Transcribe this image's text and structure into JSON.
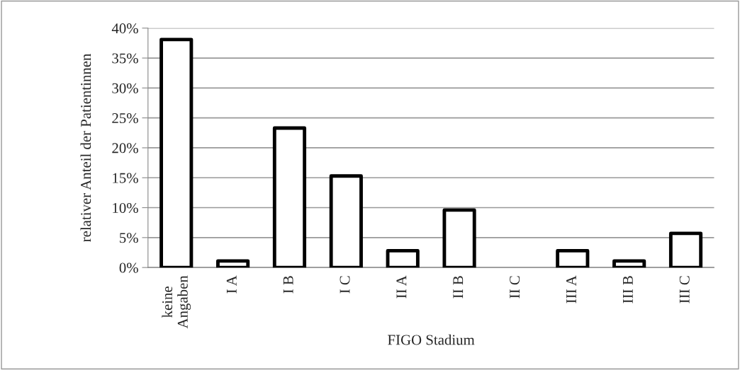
{
  "chart_data": {
    "type": "bar",
    "xlabel": "FIGO Stadium",
    "ylabel": "relativer Anteil der Patientinnen",
    "categories": [
      "keine\nAngaben",
      "I A",
      "I B",
      "I C",
      "II A",
      "II B",
      "II C",
      "III A",
      "III B",
      "III C"
    ],
    "values": [
      38.1,
      1.1,
      23.3,
      15.3,
      2.8,
      9.6,
      0,
      2.8,
      1.1,
      5.7
    ],
    "color": "#ffffff",
    "ylim": [
      0,
      40
    ],
    "yticks": [
      {
        "value": 0,
        "label": "0%"
      },
      {
        "value": 5,
        "label": "5%"
      },
      {
        "value": 10,
        "label": "10%"
      },
      {
        "value": 15,
        "label": "15%"
      },
      {
        "value": 20,
        "label": "20%"
      },
      {
        "value": 25,
        "label": "25%"
      },
      {
        "value": 30,
        "label": "30%"
      },
      {
        "value": 35,
        "label": "35%"
      },
      {
        "value": 40,
        "label": "40%"
      }
    ],
    "grid": "y",
    "legend": false
  }
}
